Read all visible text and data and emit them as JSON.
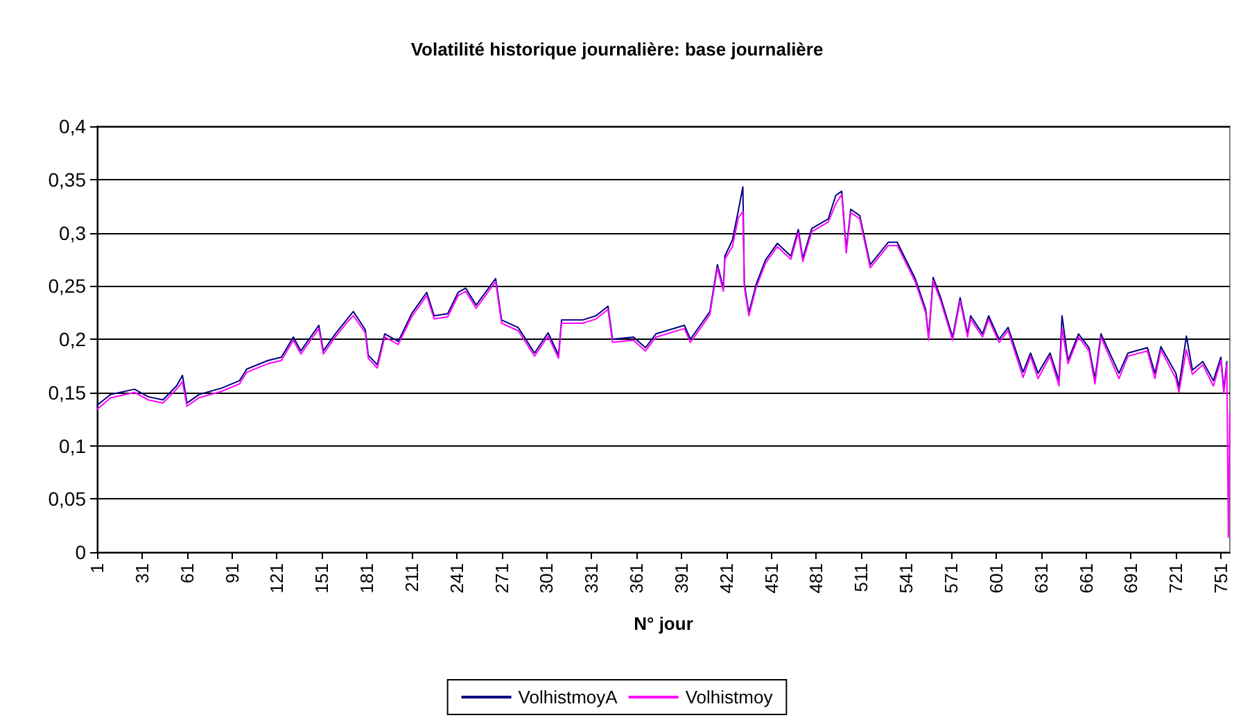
{
  "chart_data": {
    "type": "line",
    "title": "Volatilité historique journalière: base journalière",
    "xlabel": "N° jour",
    "x": [
      1,
      10,
      26,
      35,
      45,
      54,
      58,
      61,
      69,
      84,
      96,
      101,
      115,
      124,
      132,
      137,
      149,
      152,
      160,
      168,
      172,
      180,
      182,
      188,
      193,
      202,
      211,
      221,
      226,
      235,
      242,
      247,
      254,
      267,
      271,
      282,
      293,
      302,
      309,
      311,
      325,
      334,
      342,
      345,
      359,
      367,
      374,
      393,
      397,
      410,
      415,
      419,
      420,
      425,
      429,
      432,
      433,
      436,
      441,
      447,
      455,
      464,
      469,
      472,
      478,
      489,
      494,
      498,
      501,
      504,
      510,
      517,
      529,
      535,
      547,
      554,
      556,
      559,
      564,
      572,
      577,
      582,
      584,
      592,
      596,
      603,
      609,
      619,
      624,
      629,
      637,
      643,
      645,
      649,
      656,
      663,
      667,
      671,
      683,
      689,
      702,
      707,
      711,
      721,
      723,
      728,
      732,
      739,
      746,
      751,
      753,
      755,
      756,
      757
    ],
    "series": [
      {
        "name": "VolhistmoyA",
        "color": "#000080",
        "values": [
          0.138,
          0.148,
          0.153,
          0.146,
          0.143,
          0.156,
          0.166,
          0.14,
          0.148,
          0.154,
          0.161,
          0.172,
          0.18,
          0.183,
          0.202,
          0.189,
          0.213,
          0.189,
          0.205,
          0.219,
          0.226,
          0.209,
          0.185,
          0.176,
          0.205,
          0.198,
          0.224,
          0.244,
          0.222,
          0.224,
          0.244,
          0.248,
          0.232,
          0.257,
          0.218,
          0.211,
          0.187,
          0.206,
          0.185,
          0.218,
          0.218,
          0.222,
          0.231,
          0.2,
          0.202,
          0.192,
          0.205,
          0.213,
          0.2,
          0.226,
          0.27,
          0.248,
          0.278,
          0.293,
          0.321,
          0.343,
          0.252,
          0.225,
          0.252,
          0.274,
          0.29,
          0.278,
          0.303,
          0.276,
          0.304,
          0.313,
          0.335,
          0.339,
          0.284,
          0.322,
          0.316,
          0.27,
          0.291,
          0.291,
          0.257,
          0.228,
          0.202,
          0.258,
          0.239,
          0.202,
          0.239,
          0.205,
          0.222,
          0.205,
          0.222,
          0.2,
          0.211,
          0.169,
          0.187,
          0.168,
          0.187,
          0.161,
          0.222,
          0.18,
          0.205,
          0.192,
          0.163,
          0.205,
          0.168,
          0.187,
          0.192,
          0.168,
          0.193,
          0.168,
          0.155,
          0.203,
          0.171,
          0.179,
          0.161,
          0.183,
          0.153,
          0.179,
          null,
          null
        ]
      },
      {
        "name": "Volhistmoy",
        "color": "#ff00ff",
        "values": [
          0.134,
          0.145,
          0.15,
          0.143,
          0.14,
          0.153,
          0.16,
          0.137,
          0.145,
          0.151,
          0.158,
          0.169,
          0.177,
          0.18,
          0.199,
          0.186,
          0.21,
          0.186,
          0.202,
          0.216,
          0.222,
          0.206,
          0.182,
          0.173,
          0.202,
          0.195,
          0.221,
          0.241,
          0.219,
          0.221,
          0.241,
          0.245,
          0.229,
          0.254,
          0.215,
          0.208,
          0.184,
          0.203,
          0.182,
          0.215,
          0.215,
          0.219,
          0.228,
          0.197,
          0.199,
          0.189,
          0.202,
          0.21,
          0.197,
          0.223,
          0.267,
          0.245,
          0.275,
          0.287,
          0.314,
          0.32,
          0.249,
          0.222,
          0.249,
          0.271,
          0.287,
          0.275,
          0.3,
          0.273,
          0.301,
          0.31,
          0.327,
          0.336,
          0.281,
          0.319,
          0.313,
          0.267,
          0.288,
          0.288,
          0.254,
          0.225,
          0.199,
          0.255,
          0.236,
          0.199,
          0.236,
          0.202,
          0.219,
          0.202,
          0.219,
          0.197,
          0.208,
          0.164,
          0.184,
          0.163,
          0.184,
          0.156,
          0.21,
          0.177,
          0.202,
          0.189,
          0.158,
          0.202,
          0.163,
          0.184,
          0.189,
          0.163,
          0.19,
          0.163,
          0.15,
          0.19,
          0.167,
          0.176,
          0.156,
          0.18,
          0.149,
          0.176,
          0.014,
          0.13
        ]
      }
    ],
    "xlim": [
      1,
      757
    ],
    "xticks": [
      1,
      31,
      61,
      91,
      121,
      151,
      181,
      211,
      241,
      271,
      301,
      331,
      361,
      391,
      421,
      451,
      481,
      511,
      541,
      571,
      601,
      631,
      661,
      691,
      721,
      751
    ],
    "ylim": [
      0,
      0.4
    ],
    "yticks": [
      {
        "value": 0,
        "label": "0"
      },
      {
        "value": 0.05,
        "label": "0,05"
      },
      {
        "value": 0.1,
        "label": "0,1"
      },
      {
        "value": 0.15,
        "label": "0,15"
      },
      {
        "value": 0.2,
        "label": "0,2"
      },
      {
        "value": 0.25,
        "label": "0,25"
      },
      {
        "value": 0.3,
        "label": "0,3"
      },
      {
        "value": 0.35,
        "label": "0,35"
      },
      {
        "value": 0.4,
        "label": "0,4"
      }
    ],
    "grid": "y",
    "legend": "bottom",
    "marker": "none",
    "line_style": "solid"
  }
}
